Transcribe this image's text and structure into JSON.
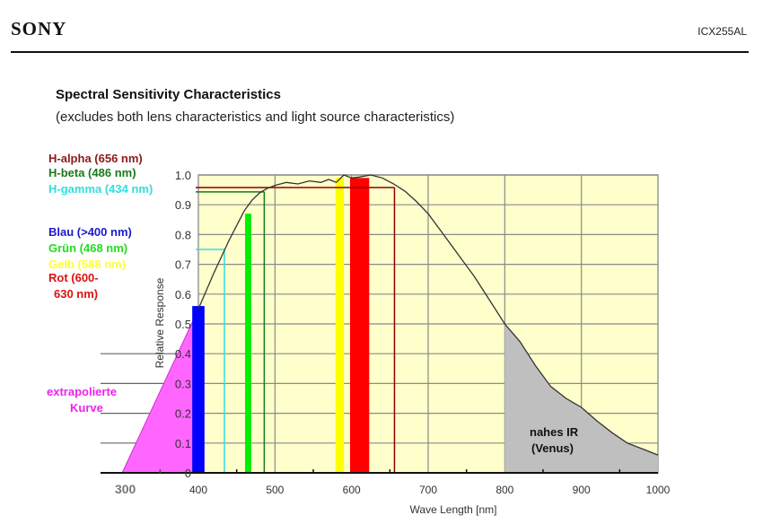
{
  "header": {
    "brand": "SONY",
    "part_number": "ICX255AL"
  },
  "chart_data": {
    "type": "line",
    "title": "Spectral Sensitivity Characteristics",
    "subtitle": "(excludes both lens characteristics and light source characteristics)",
    "xlabel": "Wave Length [nm]",
    "ylabel": "Relative Response",
    "xlim": [
      400,
      1000
    ],
    "ylim": [
      0,
      1.0
    ],
    "grid": true,
    "x_ticks": [
      300,
      400,
      500,
      600,
      700,
      800,
      900,
      1000
    ],
    "y_ticks": [
      "0",
      "0.1",
      "0.2",
      "0.3",
      "0.4",
      "0.5",
      "0.6",
      "0.7",
      "0.8",
      "0.9",
      "1.0"
    ],
    "series": [
      {
        "name": "Relative Response",
        "color": "#333333",
        "x": [
          400,
          420,
          440,
          460,
          470,
          480,
          490,
          500,
          515,
          530,
          545,
          560,
          570,
          580,
          590,
          600,
          610,
          625,
          640,
          655,
          670,
          685,
          700,
          720,
          740,
          760,
          780,
          800,
          820,
          840,
          860,
          880,
          900,
          920,
          940,
          960,
          980,
          1000
        ],
        "values": [
          0.55,
          0.67,
          0.78,
          0.88,
          0.915,
          0.94,
          0.955,
          0.965,
          0.975,
          0.97,
          0.98,
          0.975,
          0.985,
          0.975,
          1.0,
          0.99,
          0.993,
          1.0,
          0.99,
          0.97,
          0.945,
          0.91,
          0.87,
          0.8,
          0.73,
          0.66,
          0.58,
          0.5,
          0.44,
          0.36,
          0.29,
          0.25,
          0.22,
          0.175,
          0.135,
          0.1,
          0.08,
          0.06
        ]
      },
      {
        "name": "extrapolierte Kurve",
        "color": "#ff66ff",
        "x": [
          300,
          400
        ],
        "values": [
          0,
          0.55
        ]
      }
    ],
    "regions": [
      {
        "name": "nahes IR (Venus)",
        "from": 800,
        "to": 1000,
        "color": "#bfbfbf"
      }
    ],
    "bands": [
      {
        "name": "Blau (>400 nm)",
        "from": 392,
        "to": 408,
        "top": 0.56,
        "color": "#0000ff"
      },
      {
        "name": "Grün (468 nm)",
        "from": 461,
        "to": 469,
        "top": 0.87,
        "color": "#00ee00"
      },
      {
        "name": "Gelb (588 nm)",
        "from": 579,
        "to": 590,
        "top": 0.99,
        "color": "#ffff00"
      },
      {
        "name": "Rot (600-630 nm)",
        "from": 598,
        "to": 623,
        "top": 0.99,
        "color": "#ff0000"
      }
    ],
    "markers": [
      {
        "name": "H-alpha (656 nm)",
        "x": 656,
        "y": 0.958,
        "color": "#8b0000"
      },
      {
        "name": "H-beta (486 nm)",
        "x": 486,
        "y": 0.943,
        "color": "#1a7a1a"
      },
      {
        "name": "H-gamma (434 nm)",
        "x": 434,
        "y": 0.75,
        "color": "#33dddd"
      }
    ],
    "legend": [
      {
        "text": "H-alpha (656 nm)",
        "color": "#8b1a1a"
      },
      {
        "text": "H-beta (486 nm)",
        "color": "#1a7a1a"
      },
      {
        "text": "H-gamma (434 nm)",
        "color": "#33dddd"
      },
      {
        "text": "Blau (>400 nm)",
        "color": "#1a1acc"
      },
      {
        "text": "Grün (468 nm)",
        "color": "#22dd22"
      },
      {
        "text": "Gelb (588 nm)",
        "color": "#ffff33"
      },
      {
        "text": "Rot (600-",
        "color": "#dd1111"
      },
      {
        "text": "630 nm)",
        "color": "#dd1111"
      }
    ],
    "annotations": {
      "extrapolated_line1": "extrapolierte",
      "extrapolated_line2": "Kurve",
      "ir_line1": "nahes IR",
      "ir_line2": "(Venus)"
    }
  }
}
